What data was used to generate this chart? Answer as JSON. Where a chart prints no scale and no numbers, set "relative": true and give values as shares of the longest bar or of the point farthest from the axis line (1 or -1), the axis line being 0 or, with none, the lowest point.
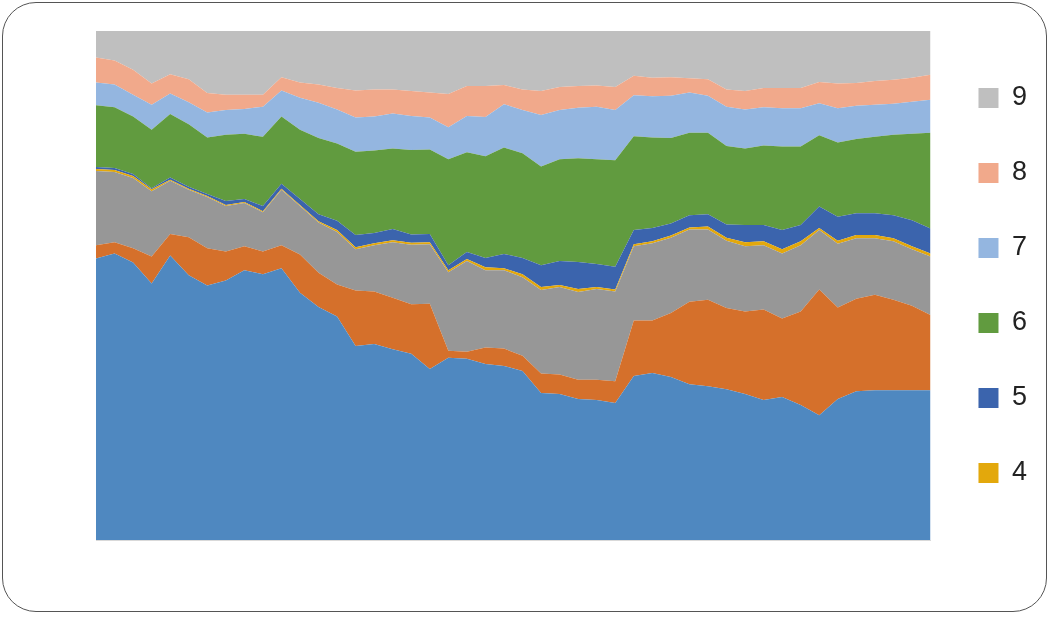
{
  "chart_data": {
    "type": "area",
    "stacked": true,
    "relative": true,
    "legend": "right",
    "categories": [
      null,
      null,
      null,
      null,
      null,
      null,
      null,
      null,
      null,
      null,
      null,
      null,
      null,
      null,
      null,
      null,
      null,
      null,
      null,
      null,
      null,
      null,
      null,
      null,
      null,
      null,
      null,
      null,
      null,
      null,
      null,
      null,
      null,
      null,
      null,
      null,
      null,
      null,
      null,
      null,
      null,
      null,
      null,
      null,
      null,
      null
    ],
    "series": [
      {
        "color": "#4f88c0",
        "values": [
          0.553,
          0.563,
          0.545,
          0.504,
          0.559,
          0.52,
          0.5,
          0.51,
          0.53,
          0.522,
          0.534,
          0.486,
          0.458,
          0.439,
          0.381,
          0.385,
          0.375,
          0.366,
          0.336,
          0.358,
          0.356,
          0.346,
          0.342,
          0.332,
          0.289,
          0.287,
          0.277,
          0.275,
          0.269,
          0.322,
          0.328,
          0.32,
          0.306,
          0.302,
          0.296,
          0.287,
          0.275,
          0.281,
          0.265,
          0.245,
          0.277,
          0.292,
          0.294,
          0.294,
          0.294,
          0.294
        ]
      },
      {
        "color": "#d5702b",
        "values": [
          0.026,
          0.022,
          0.028,
          0.053,
          0.042,
          0.075,
          0.073,
          0.057,
          0.047,
          0.045,
          0.045,
          0.075,
          0.067,
          0.063,
          0.109,
          0.103,
          0.101,
          0.097,
          0.128,
          0.014,
          0.014,
          0.032,
          0.034,
          0.03,
          0.038,
          0.038,
          0.038,
          0.04,
          0.043,
          0.109,
          0.103,
          0.126,
          0.162,
          0.17,
          0.16,
          0.162,
          0.178,
          0.154,
          0.184,
          0.247,
          0.18,
          0.182,
          0.188,
          0.178,
          0.166,
          0.148
        ]
      },
      {
        "color": "#979797",
        "values": [
          0.146,
          0.138,
          0.138,
          0.128,
          0.105,
          0.093,
          0.101,
          0.089,
          0.085,
          0.077,
          0.109,
          0.095,
          0.099,
          0.103,
          0.081,
          0.091,
          0.109,
          0.117,
          0.117,
          0.154,
          0.178,
          0.152,
          0.154,
          0.154,
          0.164,
          0.172,
          0.172,
          0.178,
          0.176,
          0.146,
          0.152,
          0.148,
          0.142,
          0.138,
          0.132,
          0.128,
          0.126,
          0.128,
          0.13,
          0.117,
          0.125,
          0.119,
          0.111,
          0.115,
          0.111,
          0.115
        ]
      },
      {
        "name": "4",
        "color": "#e3a80c",
        "values": [
          0.004,
          0.004,
          0.004,
          0.004,
          0.002,
          0.002,
          0.002,
          0.002,
          0.002,
          0.002,
          0.002,
          0.002,
          0.002,
          0.004,
          0.004,
          0.004,
          0.004,
          0.004,
          0.004,
          0.004,
          0.004,
          0.006,
          0.004,
          0.006,
          0.006,
          0.004,
          0.006,
          0.004,
          0.004,
          0.004,
          0.004,
          0.004,
          0.004,
          0.006,
          0.006,
          0.008,
          0.008,
          0.008,
          0.008,
          0.004,
          0.006,
          0.006,
          0.006,
          0.006,
          0.006,
          0.006
        ]
      },
      {
        "name": "5",
        "color": "#3b64ad",
        "values": [
          0.004,
          0.004,
          0.004,
          0.002,
          0.004,
          0.004,
          0.004,
          0.008,
          0.006,
          0.01,
          0.01,
          0.012,
          0.014,
          0.018,
          0.024,
          0.02,
          0.022,
          0.016,
          0.016,
          0.01,
          0.014,
          0.018,
          0.028,
          0.032,
          0.043,
          0.047,
          0.053,
          0.045,
          0.045,
          0.028,
          0.026,
          0.024,
          0.024,
          0.024,
          0.026,
          0.034,
          0.032,
          0.038,
          0.032,
          0.042,
          0.047,
          0.043,
          0.043,
          0.045,
          0.051,
          0.049
        ]
      },
      {
        "name": "6",
        "color": "#619b3f",
        "values": [
          0.121,
          0.119,
          0.113,
          0.115,
          0.125,
          0.123,
          0.111,
          0.13,
          0.128,
          0.136,
          0.132,
          0.136,
          0.15,
          0.152,
          0.164,
          0.162,
          0.158,
          0.166,
          0.166,
          0.208,
          0.196,
          0.2,
          0.209,
          0.206,
          0.194,
          0.2,
          0.204,
          0.206,
          0.209,
          0.184,
          0.178,
          0.168,
          0.162,
          0.16,
          0.154,
          0.15,
          0.156,
          0.164,
          0.154,
          0.14,
          0.146,
          0.146,
          0.15,
          0.158,
          0.17,
          0.188
        ]
      },
      {
        "name": "7",
        "color": "#94b6e0",
        "values": [
          0.045,
          0.045,
          0.043,
          0.049,
          0.04,
          0.043,
          0.049,
          0.049,
          0.049,
          0.059,
          0.051,
          0.063,
          0.069,
          0.067,
          0.067,
          0.067,
          0.069,
          0.067,
          0.063,
          0.063,
          0.071,
          0.077,
          0.085,
          0.085,
          0.101,
          0.097,
          0.099,
          0.103,
          0.099,
          0.081,
          0.081,
          0.083,
          0.079,
          0.073,
          0.077,
          0.077,
          0.075,
          0.075,
          0.075,
          0.063,
          0.067,
          0.065,
          0.063,
          0.061,
          0.063,
          0.065
        ]
      },
      {
        "name": "8",
        "color": "#f1a98b",
        "values": [
          0.049,
          0.047,
          0.049,
          0.042,
          0.038,
          0.045,
          0.038,
          0.03,
          0.028,
          0.024,
          0.026,
          0.03,
          0.036,
          0.042,
          0.053,
          0.053,
          0.047,
          0.049,
          0.049,
          0.065,
          0.059,
          0.061,
          0.038,
          0.04,
          0.047,
          0.045,
          0.043,
          0.042,
          0.045,
          0.038,
          0.036,
          0.036,
          0.028,
          0.032,
          0.034,
          0.036,
          0.038,
          0.04,
          0.04,
          0.042,
          0.049,
          0.045,
          0.047,
          0.047,
          0.047,
          0.049
        ]
      },
      {
        "name": "9",
        "color": "#bfbfbf",
        "values": [
          0.052,
          0.058,
          0.076,
          0.103,
          0.085,
          0.095,
          0.122,
          0.125,
          0.125,
          0.125,
          0.091,
          0.101,
          0.105,
          0.112,
          0.117,
          0.115,
          0.115,
          0.118,
          0.121,
          0.124,
          0.108,
          0.108,
          0.106,
          0.115,
          0.118,
          0.11,
          0.108,
          0.107,
          0.11,
          0.088,
          0.092,
          0.091,
          0.093,
          0.095,
          0.115,
          0.118,
          0.112,
          0.112,
          0.112,
          0.1,
          0.103,
          0.102,
          0.098,
          0.096,
          0.092,
          0.086
        ]
      }
    ]
  }
}
